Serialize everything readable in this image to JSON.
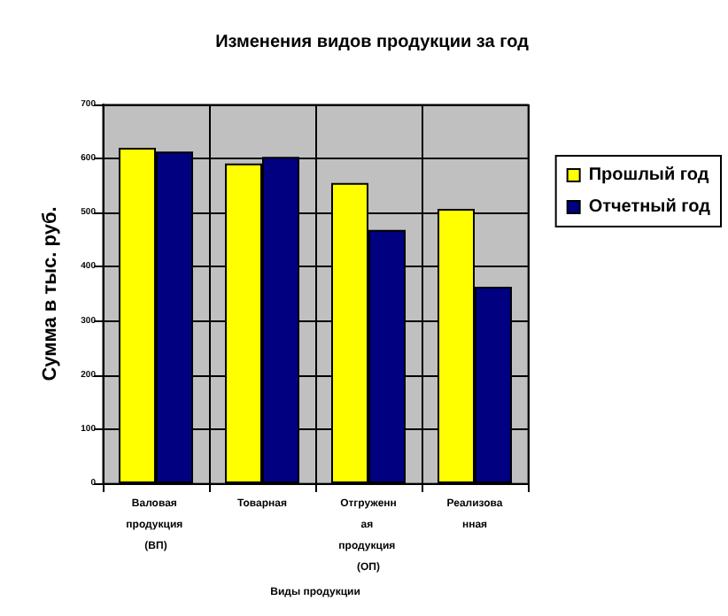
{
  "chart_data": {
    "type": "bar",
    "title": "Изменения видов продукции за год",
    "xlabel": "Виды продукции",
    "ylabel": "Сумма в тыс. руб.",
    "categories": [
      "Валовая продукция (ВП)",
      "Товарная",
      "Отгруженная продукция (ОП)",
      "Реализованная"
    ],
    "series": [
      {
        "name": "Прошлый год",
        "color": "#ffff00",
        "values": [
          620,
          591,
          555,
          507
        ]
      },
      {
        "name": "Отчетный год",
        "color": "#000080",
        "values": [
          613,
          603,
          468,
          363
        ]
      }
    ],
    "ylim": [
      0,
      700
    ],
    "yticks": [
      0,
      100,
      200,
      300,
      400,
      500,
      600,
      700
    ],
    "grid": true,
    "legend": "right"
  }
}
